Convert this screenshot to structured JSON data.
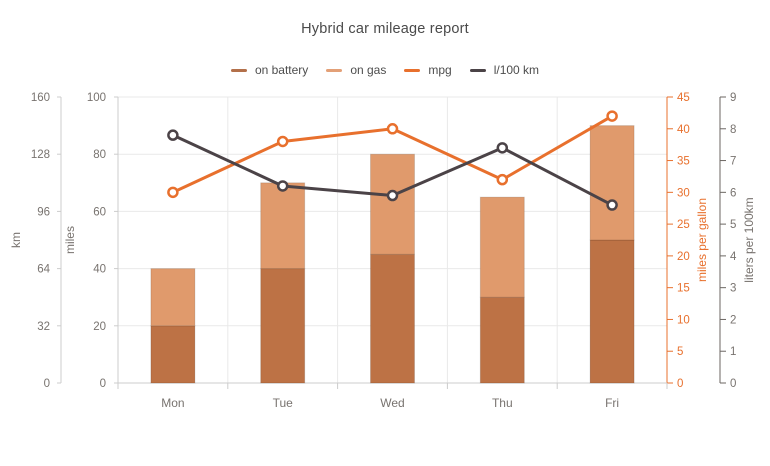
{
  "title": "Hybrid car mileage report",
  "legend": {
    "items": [
      {
        "label": "on battery",
        "color": "#b3704a"
      },
      {
        "label": "on gas",
        "color": "#e3a077"
      },
      {
        "label": "mpg",
        "color": "#e8702d"
      },
      {
        "label": "l/100 km",
        "color": "#4b4347"
      }
    ]
  },
  "chart_data": {
    "type": "bar",
    "subtype": "stacked-bars-with-line-overlays",
    "title": "Hybrid car mileage report",
    "categories": [
      "Mon",
      "Tue",
      "Wed",
      "Thu",
      "Fri"
    ],
    "series": [
      {
        "name": "on battery",
        "type": "bar",
        "stack": "miles",
        "axis": "miles",
        "color": "#bd7245",
        "values": [
          20,
          40,
          45,
          30,
          50
        ]
      },
      {
        "name": "on gas",
        "type": "bar",
        "stack": "miles",
        "axis": "miles",
        "color": "#e09a6c",
        "values": [
          20,
          30,
          35,
          35,
          40
        ]
      },
      {
        "name": "mpg",
        "type": "line",
        "axis": "mpg",
        "color": "#e8702d",
        "values": [
          30,
          38,
          40,
          32,
          42
        ]
      },
      {
        "name": "l/100 km",
        "type": "line",
        "axis": "l100km",
        "color": "#4b4347",
        "values": [
          7.8,
          6.2,
          5.9,
          7.4,
          5.6
        ]
      }
    ],
    "stacked_totals_miles": [
      40,
      70,
      80,
      65,
      90
    ],
    "axes": {
      "km": {
        "title": "km",
        "side": "left",
        "range": [
          0,
          160
        ],
        "ticks": [
          0,
          32,
          64,
          96,
          128,
          160
        ],
        "line_color": "#cccccc",
        "text_color": "#78736f"
      },
      "miles": {
        "title": "miles",
        "side": "left",
        "range": [
          0,
          100
        ],
        "ticks": [
          0,
          20,
          40,
          60,
          80,
          100
        ],
        "line_color": "#cccccc",
        "text_color": "#78736f"
      },
      "mpg": {
        "title": "miles per gallon",
        "side": "right",
        "range": [
          0,
          45
        ],
        "ticks": [
          0,
          5,
          10,
          15,
          20,
          25,
          30,
          35,
          40,
          45
        ],
        "line_color": "#e8702d",
        "text_color": "#e8702d"
      },
      "l100km": {
        "title": "liters per 100km",
        "side": "right",
        "range": [
          0,
          9
        ],
        "ticks": [
          0,
          1,
          2,
          3,
          4,
          5,
          6,
          7,
          8,
          9
        ],
        "line_color": "#6b6662",
        "text_color": "#78736f"
      }
    },
    "x_axis": {
      "line_color": "#cccccc",
      "text_color": "#78736f"
    },
    "grid": {
      "show": true,
      "color": "#e9e9e9"
    },
    "legend_position": "top",
    "marker_style": "circle-white-fill"
  }
}
